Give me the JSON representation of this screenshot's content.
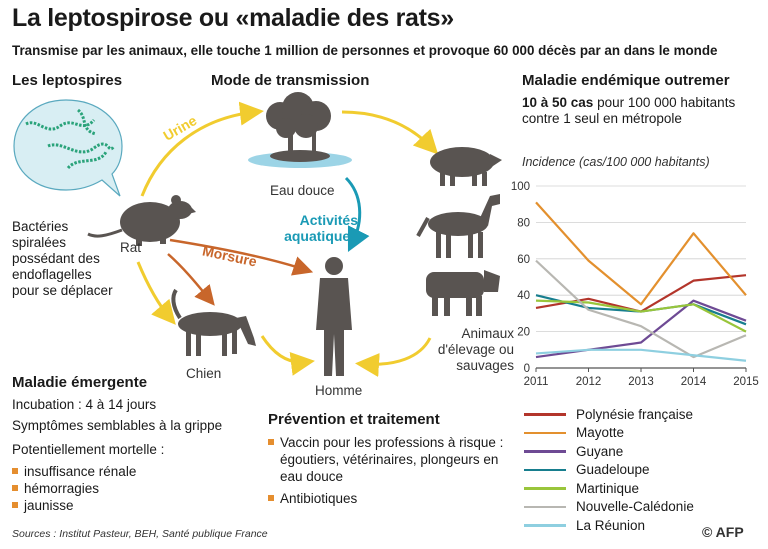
{
  "header": {
    "title": "La leptospirose ou «maladie des rats»",
    "subtitle": "Transmise par les animaux, elle touche 1 million de personnes et provoque 60 000 décès par an dans le monde"
  },
  "leptospires": {
    "heading": "Les leptospires",
    "description": "Bactéries spiralées possédant des endoflagelles pour se déplacer"
  },
  "transmission": {
    "heading": "Mode de transmission",
    "arrow_urine": "Urine",
    "arrow_morsure": "Morsure",
    "arrow_activities": "Activités aquatiques",
    "labels": {
      "rat": "Rat",
      "eau_douce": "Eau douce",
      "chien": "Chien",
      "homme": "Homme",
      "animaux": "Animaux d'élevage ou sauvages"
    }
  },
  "emergente": {
    "heading": "Maladie émergente",
    "incubation": "Incubation : 4 à 14 jours",
    "symptomes": "Symptômes semblables à la grippe",
    "mortelle": "Potentiellement mortelle :",
    "items": [
      "insuffisance rénale",
      "hémorragies",
      "jaunisse"
    ]
  },
  "prevention": {
    "heading": "Prévention et traitement",
    "items": [
      "Vaccin pour les professions à risque : égoutiers, vétérinaires, plongeurs en eau douce",
      "Antibiotiques"
    ]
  },
  "endemique": {
    "heading": "Maladie endémique outremer",
    "highlight": "10 à 50 cas",
    "rest": " pour 100 000 habitants contre 1 seul en métropole"
  },
  "footer": {
    "sources": "Sources : Institut Pasteur, BEH, Santé publique France",
    "credit": "© AFP"
  },
  "colors": {
    "orange": "#e58e2f",
    "yellow": "#f1cc2f",
    "teal": "#1a9ab5",
    "silhouette": "#595451"
  },
  "chart_data": {
    "type": "line",
    "title": "Incidence (cas/100 000 habitants)",
    "x": [
      2011,
      2012,
      2013,
      2014,
      2015
    ],
    "ylim": [
      0,
      100
    ],
    "yticks": [
      0,
      20,
      40,
      60,
      80,
      100
    ],
    "grid": true,
    "legend_position": "below",
    "series": [
      {
        "name": "Polynésie française",
        "color": "#b3352b",
        "values": [
          33,
          38,
          31,
          48,
          51
        ]
      },
      {
        "name": "Mayotte",
        "color": "#e3902e",
        "values": [
          91,
          59,
          35,
          74,
          40
        ]
      },
      {
        "name": "Guyane",
        "color": "#6e4a94",
        "values": [
          6,
          10,
          14,
          37,
          26
        ]
      },
      {
        "name": "Guadeloupe",
        "color": "#177e8e",
        "values": [
          40,
          33,
          31,
          35,
          24
        ]
      },
      {
        "name": "Martinique",
        "color": "#99c53b",
        "values": [
          37,
          36,
          31,
          35,
          20
        ]
      },
      {
        "name": "Nouvelle-Calédonie",
        "color": "#b8b7b2",
        "values": [
          59,
          32,
          23,
          6,
          18
        ]
      },
      {
        "name": "La Réunion",
        "color": "#8ecfe0",
        "values": [
          8,
          10,
          10,
          7,
          4
        ]
      }
    ]
  }
}
